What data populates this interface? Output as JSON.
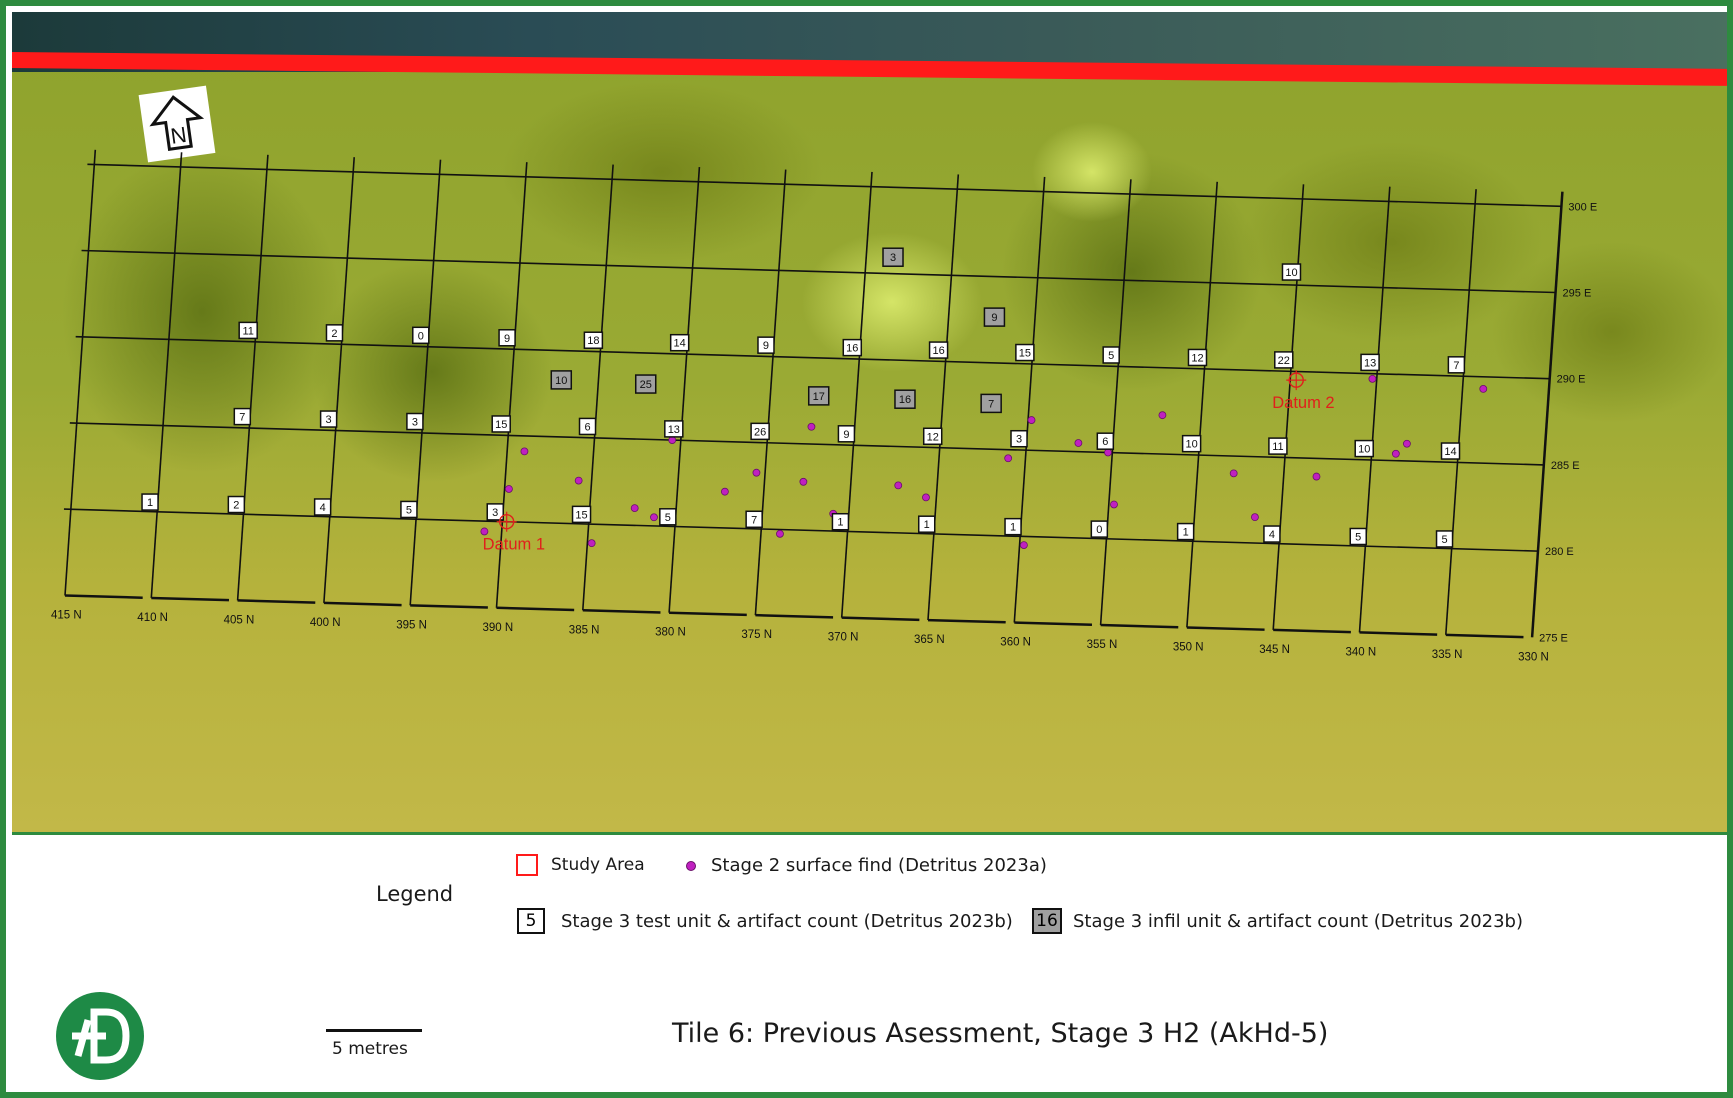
{
  "north_arrow": {
    "label": "N"
  },
  "axis_labels_north": [
    "415 N",
    "410 N",
    "405 N",
    "400 N",
    "395 N",
    "390 N",
    "385 N",
    "380 N",
    "375 N",
    "370 N",
    "365 N",
    "360 N",
    "355 N",
    "350 N",
    "345 N",
    "340 N",
    "335 N",
    "330 N"
  ],
  "axis_labels_east": [
    "300 E",
    "295 E",
    "290 E",
    "285 E",
    "280 E",
    "275 E"
  ],
  "test_units": {
    "row_290": [
      "11",
      "2",
      "0",
      "9",
      "18",
      "14",
      "9",
      "16",
      "16",
      "15",
      "5",
      "12",
      "22",
      "13",
      "7"
    ],
    "row_285": [
      "7",
      "3",
      "3",
      "15",
      "6",
      "13",
      "26",
      "9",
      "12",
      "3",
      "6",
      "10",
      "11",
      "10",
      "14"
    ],
    "row_280": [
      "1",
      "2",
      "4",
      "5",
      "3",
      "15",
      "5",
      "7",
      "1",
      "1",
      "1",
      "0",
      "1",
      "4",
      "5",
      "5"
    ],
    "extra": [
      "10"
    ]
  },
  "infill_units": [
    "3",
    "9",
    "10",
    "25",
    "17",
    "16",
    "7"
  ],
  "datums": [
    "Datum 1",
    "Datum 2"
  ],
  "legend": {
    "title": "Legend",
    "study_area": "Study Area",
    "surface_find": "Stage 2 surface find (Detritus 2023a)",
    "test_unit_sample": "5",
    "test_unit": "Stage 3 test unit & artifact count (Detritus 2023b)",
    "infill_unit_sample": "16",
    "infill_unit": "Stage 3 infil unit & artifact count (Detritus 2023b)"
  },
  "scale_bar": {
    "label": "5 metres"
  },
  "map_title": "Tile 6: Previous Asessment, Stage 3 H2 (AkHd-5)",
  "colors": {
    "frame": "#2e8b3f",
    "study_area": "#ff1a1a",
    "surface_find": "#c020c0",
    "infill_fill": "#a0a0a0",
    "datum": "#e0201c",
    "logo": "#1e8a46"
  }
}
